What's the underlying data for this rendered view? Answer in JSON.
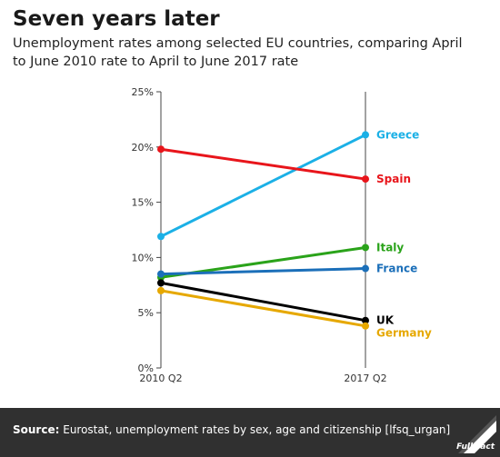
{
  "header": {
    "title": "Seven years later",
    "subtitle": "Unemployment rates among selected EU countries, comparing April to June 2010 rate to April to June 2017 rate"
  },
  "footer": {
    "source_label": "Source:",
    "source_text": "Eurostat, unemployment rates by sex, age and citizenship [lfsq_urgan]",
    "logo_text": "Full Fact"
  },
  "chart_data": {
    "type": "line",
    "title": "Seven years later",
    "subtitle": "Unemployment rates among selected EU countries, comparing April to June 2010 rate to April to June 2017 rate",
    "categories": [
      "2010 Q2",
      "2017 Q2"
    ],
    "ylim": [
      0,
      25
    ],
    "yticks": [
      0,
      5,
      10,
      15,
      20,
      25
    ],
    "ytick_labels": [
      "0%",
      "5%",
      "10%",
      "15%",
      "20%",
      "25%"
    ],
    "grid": false,
    "legend": "direct labels at right",
    "series": [
      {
        "name": "Greece",
        "values": [
          11.9,
          21.1
        ],
        "color": "#1bb0e6"
      },
      {
        "name": "Spain",
        "values": [
          19.8,
          17.1
        ],
        "color": "#e8151b"
      },
      {
        "name": "Italy",
        "values": [
          8.2,
          10.9
        ],
        "color": "#2aa31a"
      },
      {
        "name": "France",
        "values": [
          8.5,
          9.0
        ],
        "color": "#1b6fb9"
      },
      {
        "name": "UK",
        "values": [
          7.7,
          4.3
        ],
        "color": "#000000"
      },
      {
        "name": "Germany",
        "values": [
          7.0,
          3.8
        ],
        "color": "#e6a800"
      }
    ]
  }
}
